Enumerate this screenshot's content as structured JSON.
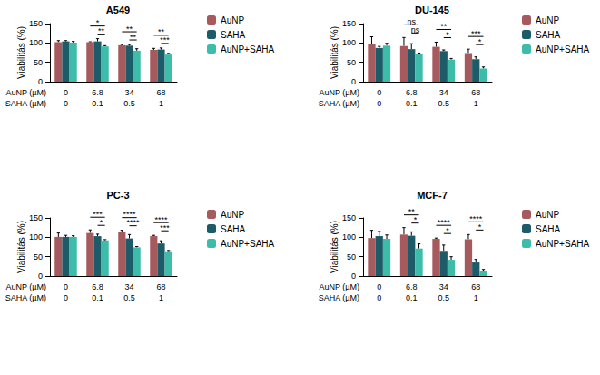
{
  "chart_data": [
    {
      "type": "bar",
      "title": "A549",
      "y_label": "Viabilitás (%)",
      "categories": [
        "0",
        "6.8",
        "34",
        "68"
      ],
      "categories_2": [
        "0",
        "0.1",
        "0.5",
        "1"
      ],
      "category_titles": [
        "AuNP (µM)",
        "SAHA (µM)"
      ],
      "ylim": [
        0,
        150
      ],
      "yticks": [
        0,
        50,
        100,
        150
      ],
      "grid": false,
      "legend": "right",
      "series": [
        {
          "name": "AuNP",
          "color": "#a65a5e",
          "values": [
            102,
            102,
            94,
            82
          ],
          "errors": [
            4,
            1,
            2,
            4
          ]
        },
        {
          "name": "SAHA",
          "color": "#1d5b69",
          "values": [
            104,
            104,
            93,
            83
          ],
          "errors": [
            2,
            7,
            3,
            4
          ]
        },
        {
          "name": "AuNP+SAHA",
          "color": "#3dbcaa",
          "values": [
            101,
            91,
            80,
            70
          ],
          "errors": [
            3,
            2,
            5,
            3
          ]
        }
      ],
      "annotations": [
        {
          "category": "6.8",
          "from": "AuNP",
          "to": "AuNP+SAHA",
          "text": "*"
        },
        {
          "category": "6.8",
          "from": "SAHA",
          "to": "AuNP+SAHA",
          "text": "**"
        },
        {
          "category": "34",
          "from": "AuNP",
          "to": "AuNP+SAHA",
          "text": "**"
        },
        {
          "category": "34",
          "from": "SAHA",
          "to": "AuNP+SAHA",
          "text": "**"
        },
        {
          "category": "68",
          "from": "AuNP",
          "to": "AuNP+SAHA",
          "text": "**"
        },
        {
          "category": "68",
          "from": "SAHA",
          "to": "AuNP+SAHA",
          "text": "***"
        }
      ]
    },
    {
      "type": "bar",
      "title": "DU-145",
      "y_label": "Viabilitás (%)",
      "categories": [
        "0",
        "6.8",
        "34",
        "68"
      ],
      "categories_2": [
        "0",
        "0.1",
        "0.5",
        "1"
      ],
      "category_titles": [
        "AuNP (µM)",
        "SAHA (µM)"
      ],
      "ylim": [
        0,
        150
      ],
      "yticks": [
        0,
        50,
        100,
        150
      ],
      "grid": false,
      "legend": "right",
      "series": [
        {
          "name": "AuNP",
          "color": "#a65a5e",
          "values": [
            98,
            92,
            90,
            74
          ],
          "errors": [
            18,
            22,
            12,
            10
          ]
        },
        {
          "name": "SAHA",
          "color": "#1d5b69",
          "values": [
            87,
            84,
            79,
            58
          ],
          "errors": [
            4,
            14,
            3,
            6
          ]
        },
        {
          "name": "AuNP+SAHA",
          "color": "#3dbcaa",
          "values": [
            93,
            71,
            57,
            34
          ],
          "errors": [
            6,
            3,
            3,
            4
          ]
        }
      ],
      "annotations": [
        {
          "category": "6.8",
          "from": "AuNP",
          "to": "AuNP+SAHA",
          "text": "ns"
        },
        {
          "category": "6.8",
          "from": "SAHA",
          "to": "AuNP+SAHA",
          "text": "ns"
        },
        {
          "category": "34",
          "from": "AuNP",
          "to": "AuNP+SAHA",
          "text": "**"
        },
        {
          "category": "34",
          "from": "SAHA",
          "to": "AuNP+SAHA",
          "text": "*"
        },
        {
          "category": "68",
          "from": "AuNP",
          "to": "AuNP+SAHA",
          "text": "***"
        },
        {
          "category": "68",
          "from": "SAHA",
          "to": "AuNP+SAHA",
          "text": "*"
        }
      ]
    },
    {
      "type": "bar",
      "title": "PC-3",
      "y_label": "Viabilitás (%)",
      "categories": [
        "0",
        "6.8",
        "34",
        "68"
      ],
      "categories_2": [
        "0",
        "0.1",
        "0.5",
        "1"
      ],
      "category_titles": [
        "AuNP (µM)",
        "SAHA (µM)"
      ],
      "ylim": [
        0,
        150
      ],
      "yticks": [
        0,
        50,
        100,
        150
      ],
      "grid": false,
      "legend": "right",
      "series": [
        {
          "name": "AuNP",
          "color": "#a65a5e",
          "values": [
            101,
            111,
            114,
            103
          ],
          "errors": [
            10,
            8,
            4,
            2
          ]
        },
        {
          "name": "SAHA",
          "color": "#1d5b69",
          "values": [
            101,
            103,
            97,
            84
          ],
          "errors": [
            4,
            5,
            10,
            7
          ]
        },
        {
          "name": "AuNP+SAHA",
          "color": "#3dbcaa",
          "values": [
            101,
            92,
            74,
            64
          ],
          "errors": [
            3,
            2,
            2,
            2
          ]
        }
      ],
      "annotations": [
        {
          "category": "6.8",
          "from": "AuNP",
          "to": "AuNP+SAHA",
          "text": "***"
        },
        {
          "category": "6.8",
          "from": "SAHA",
          "to": "AuNP+SAHA",
          "text": "*"
        },
        {
          "category": "34",
          "from": "AuNP",
          "to": "AuNP+SAHA",
          "text": "****"
        },
        {
          "category": "34",
          "from": "SAHA",
          "to": "AuNP+SAHA",
          "text": "****"
        },
        {
          "category": "68",
          "from": "AuNP",
          "to": "AuNP+SAHA",
          "text": "****"
        },
        {
          "category": "68",
          "from": "SAHA",
          "to": "AuNP+SAHA",
          "text": "***"
        }
      ]
    },
    {
      "type": "bar",
      "title": "MCF-7",
      "y_label": "Viabilitás (%)",
      "categories": [
        "0",
        "6.8",
        "34",
        "68"
      ],
      "categories_2": [
        "0",
        "0.1",
        "0.5",
        "1"
      ],
      "category_titles": [
        "AuNP (µM)",
        "SAHA (µM)"
      ],
      "ylim": [
        0,
        150
      ],
      "yticks": [
        0,
        50,
        100,
        150
      ],
      "grid": false,
      "legend": "right",
      "series": [
        {
          "name": "AuNP",
          "color": "#a65a5e",
          "values": [
            98,
            107,
            96,
            95
          ],
          "errors": [
            20,
            18,
            2,
            12
          ]
        },
        {
          "name": "SAHA",
          "color": "#1d5b69",
          "values": [
            103,
            104,
            65,
            35
          ],
          "errors": [
            12,
            10,
            15,
            8
          ]
        },
        {
          "name": "AuNP+SAHA",
          "color": "#3dbcaa",
          "values": [
            96,
            71,
            42,
            13
          ],
          "errors": [
            10,
            12,
            8,
            4
          ]
        }
      ],
      "annotations": [
        {
          "category": "6.8",
          "from": "AuNP",
          "to": "AuNP+SAHA",
          "text": "**"
        },
        {
          "category": "6.8",
          "from": "SAHA",
          "to": "AuNP+SAHA",
          "text": "*"
        },
        {
          "category": "34",
          "from": "AuNP",
          "to": "AuNP+SAHA",
          "text": "****"
        },
        {
          "category": "34",
          "from": "SAHA",
          "to": "AuNP+SAHA",
          "text": "*"
        },
        {
          "category": "68",
          "from": "AuNP",
          "to": "AuNP+SAHA",
          "text": "****"
        },
        {
          "category": "68",
          "from": "SAHA",
          "to": "AuNP+SAHA",
          "text": "*"
        }
      ]
    }
  ]
}
